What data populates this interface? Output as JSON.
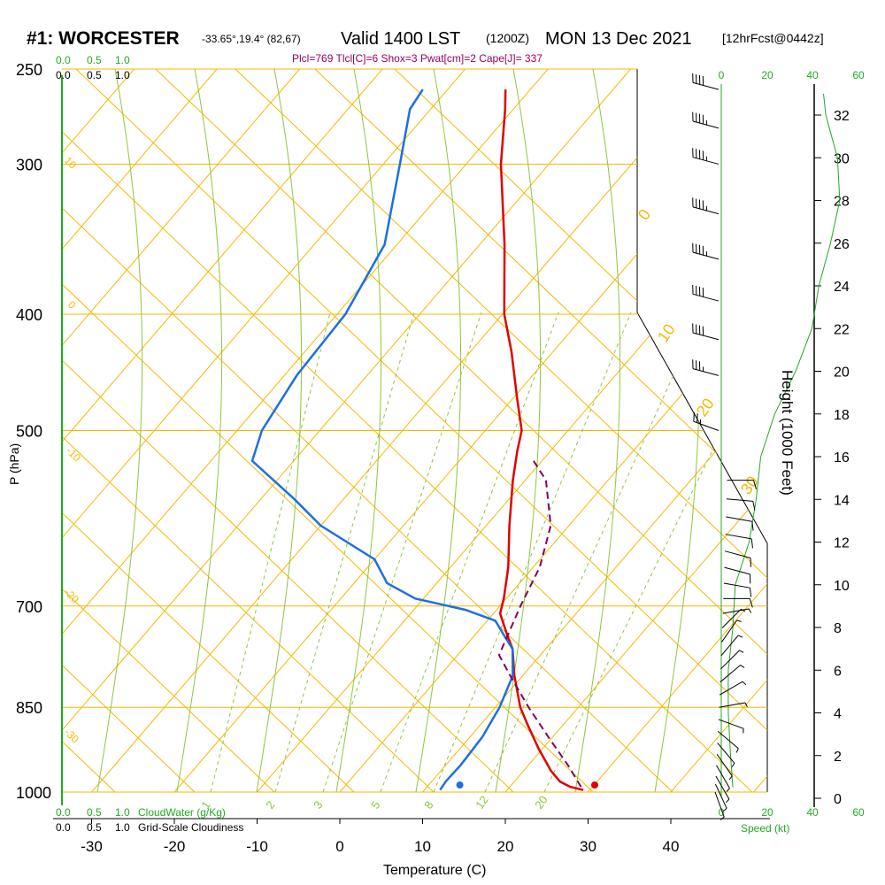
{
  "header": {
    "station": "#1: WORCESTER",
    "coords": "-33.65°,19.4° (82,67)",
    "valid": "Valid 1400 LST",
    "utc": "(1200Z)",
    "date": "MON 13 Dec 2021",
    "forecast": "[12hrFcst@0442z]",
    "indices": "Plcl=769 Tlcl[C]=6 Shox=3 Pwat[cm]=2 Cape[J]= 337"
  },
  "colors": {
    "temperature": "#e00000",
    "dewpoint": "#1f6fe0",
    "parcel": "#800060",
    "isobar": "#f5b800",
    "dry_adiabat": "#f5b800",
    "moist_adiabat": "#8ec63f",
    "mixing_ratio": "#8ec63f",
    "green_text": "#22aa22",
    "indices_text": "#990066"
  },
  "chart_data": [
    {
      "type": "line",
      "name": "skew-t",
      "title": "",
      "xlabel": "Temperature (C)",
      "ylabel": "P (hPa)",
      "x_ticks": [
        -30,
        -20,
        -10,
        0,
        10,
        20,
        30,
        40
      ],
      "y_ticks": [
        250,
        300,
        400,
        500,
        700,
        850,
        1000
      ],
      "series": [
        {
          "key": "temperature",
          "p": [
            996,
            990,
            980,
            960,
            920,
            880,
            850,
            800,
            760,
            740,
            710,
            690,
            650,
            600,
            550,
            520,
            500,
            470,
            430,
            400,
            350,
            300,
            270,
            260
          ],
          "t": [
            29.2,
            27.3,
            25.5,
            23.3,
            19.5,
            15.8,
            13.0,
            9.0,
            6.0,
            3.9,
            0.8,
            -0.3,
            -3.0,
            -7.2,
            -11.5,
            -14.0,
            -15.6,
            -19.5,
            -25.0,
            -29.8,
            -37.0,
            -45.8,
            -51.0,
            -53.0
          ]
        },
        {
          "key": "dewpoint",
          "p": [
            996,
            980,
            950,
            900,
            850,
            800,
            760,
            740,
            720,
            705,
            690,
            670,
            640,
            600,
            570,
            530,
            500,
            450,
            400,
            350,
            300,
            270,
            260
          ],
          "t": [
            11.9,
            11.7,
            11.8,
            11.5,
            10.5,
            8.8,
            6.0,
            3.5,
            1.0,
            -3.8,
            -11.0,
            -16.0,
            -20.0,
            -30.0,
            -36.0,
            -45.0,
            -47.0,
            -48.5,
            -49.0,
            -51.5,
            -58.0,
            -62.5,
            -63.0
          ]
        },
        {
          "key": "parcel",
          "p": [
            990,
            950,
            900,
            850,
            800,
            769,
            700,
            650,
            600,
            550,
            530
          ],
          "t": [
            28.6,
            24.8,
            19.5,
            14.0,
            8.5,
            5.0,
            2.5,
            0.8,
            -2.2,
            -7.5,
            -11.0
          ]
        }
      ],
      "surface_temperature": 30.8,
      "surface_dewpoint": 14.5,
      "dry_adiabat_labels": [
        "10",
        "0",
        "-10",
        "-20",
        "-30",
        "0",
        "10",
        "20",
        "30"
      ],
      "mixing_ratio_labels": [
        "1",
        "2",
        "3",
        "5",
        "8",
        "12",
        "20"
      ]
    },
    {
      "type": "line",
      "name": "cloud-water",
      "series": [
        {
          "name": "CloudWater (g/Kg)",
          "values": []
        },
        {
          "name": "Grid-Scale Cloudiness",
          "values": []
        }
      ],
      "top_ticks_green": [
        "0.0",
        "0.5",
        "1.0"
      ],
      "top_ticks_black": [
        "0.0",
        "0.5",
        "1.0"
      ],
      "bottom_ticks_green": [
        "0.0",
        "0.5",
        "1.0"
      ],
      "bottom_ticks_black": [
        "0.0",
        "0.5",
        "1.0"
      ],
      "labels": {
        "cloudwater": "CloudWater (g/Kg)",
        "cloudiness": "Grid-Scale Cloudiness"
      }
    },
    {
      "type": "line",
      "name": "wind-speed-profile",
      "xlabel": "Speed (kt)",
      "x_ticks": [
        "0",
        "20",
        "40",
        "60"
      ],
      "height_axis_label": "Height (1000 Feet)",
      "height_ticks": [
        0,
        2,
        4,
        6,
        8,
        10,
        12,
        14,
        16,
        18,
        20,
        22,
        24,
        26,
        28,
        30,
        32
      ],
      "speed_profile": [
        {
          "h": 0.5,
          "kt": 5
        },
        {
          "h": 2,
          "kt": 4
        },
        {
          "h": 4,
          "kt": 3
        },
        {
          "h": 6,
          "kt": 3
        },
        {
          "h": 8,
          "kt": 5
        },
        {
          "h": 10,
          "kt": 6
        },
        {
          "h": 12,
          "kt": 12
        },
        {
          "h": 14,
          "kt": 15
        },
        {
          "h": 16,
          "kt": 17
        },
        {
          "h": 18,
          "kt": 23
        },
        {
          "h": 20,
          "kt": 32
        },
        {
          "h": 22,
          "kt": 39
        },
        {
          "h": 24,
          "kt": 42
        },
        {
          "h": 26,
          "kt": 47
        },
        {
          "h": 28,
          "kt": 51
        },
        {
          "h": 30,
          "kt": 50
        },
        {
          "h": 32,
          "kt": 45
        },
        {
          "h": 33,
          "kt": 44
        }
      ],
      "wind_barbs": [
        {
          "p": 1000,
          "dir": 160,
          "kt": 5
        },
        {
          "p": 985,
          "dir": 155,
          "kt": 5
        },
        {
          "p": 970,
          "dir": 150,
          "kt": 5
        },
        {
          "p": 950,
          "dir": 150,
          "kt": 5
        },
        {
          "p": 930,
          "dir": 145,
          "kt": 5
        },
        {
          "p": 910,
          "dir": 140,
          "kt": 5
        },
        {
          "p": 890,
          "dir": 130,
          "kt": 5
        },
        {
          "p": 870,
          "dir": 110,
          "kt": 5
        },
        {
          "p": 850,
          "dir": 80,
          "kt": 5
        },
        {
          "p": 830,
          "dir": 60,
          "kt": 5
        },
        {
          "p": 810,
          "dir": 50,
          "kt": 5
        },
        {
          "p": 790,
          "dir": 45,
          "kt": 5
        },
        {
          "p": 770,
          "dir": 40,
          "kt": 5
        },
        {
          "p": 750,
          "dir": 35,
          "kt": 5
        },
        {
          "p": 730,
          "dir": 45,
          "kt": 5
        },
        {
          "p": 710,
          "dir": 80,
          "kt": 5
        },
        {
          "p": 690,
          "dir": 90,
          "kt": 10
        },
        {
          "p": 670,
          "dir": 100,
          "kt": 10
        },
        {
          "p": 650,
          "dir": 105,
          "kt": 10
        },
        {
          "p": 630,
          "dir": 105,
          "kt": 10
        },
        {
          "p": 610,
          "dir": 100,
          "kt": 10
        },
        {
          "p": 590,
          "dir": 100,
          "kt": 10
        },
        {
          "p": 570,
          "dir": 95,
          "kt": 10
        },
        {
          "p": 550,
          "dir": 90,
          "kt": 10
        },
        {
          "p": 500,
          "dir": 290,
          "kt": 25
        },
        {
          "p": 450,
          "dir": 285,
          "kt": 35
        },
        {
          "p": 420,
          "dir": 285,
          "kt": 40
        },
        {
          "p": 390,
          "dir": 285,
          "kt": 40
        },
        {
          "p": 360,
          "dir": 285,
          "kt": 45
        },
        {
          "p": 330,
          "dir": 285,
          "kt": 45
        },
        {
          "p": 300,
          "dir": 285,
          "kt": 45
        },
        {
          "p": 280,
          "dir": 285,
          "kt": 45
        },
        {
          "p": 260,
          "dir": 285,
          "kt": 40
        }
      ]
    }
  ]
}
